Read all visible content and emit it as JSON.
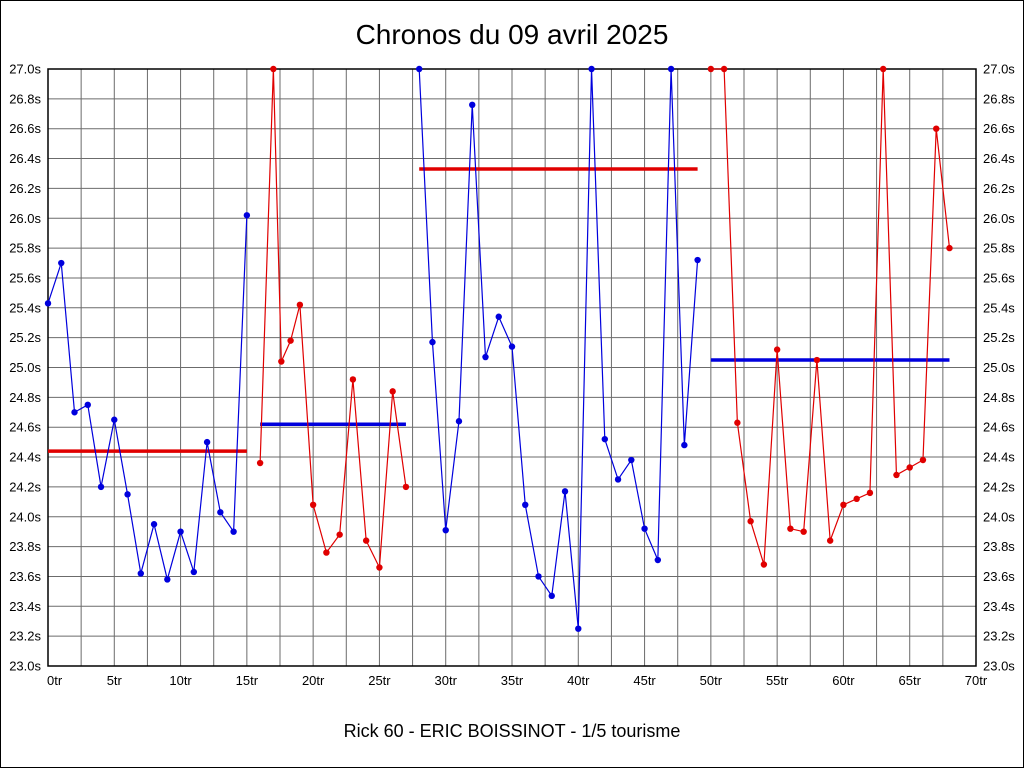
{
  "chart_data": {
    "type": "line",
    "title": "Chronos du 09 avril 2025",
    "subtitle": "Rick 60 - ERIC BOISSINOT - 1/5 tourisme",
    "x_axis": {
      "min": 0,
      "max": 70,
      "label_step": 5,
      "grid_step": 2.5,
      "unit": "tr"
    },
    "y_axis": {
      "min": 23.0,
      "max": 27.0,
      "step": 0.2,
      "unit": "s"
    },
    "grid": true,
    "legend": "none",
    "colors": {
      "blue": "#0000dd",
      "red": "#e00000",
      "grid": "#6b6b6b",
      "border": "#000000"
    },
    "series": [
      {
        "name": "stint-1-blue",
        "color": "blue",
        "points": [
          [
            0,
            25.43
          ],
          [
            1,
            25.7
          ],
          [
            2,
            24.7
          ],
          [
            3,
            24.75
          ],
          [
            4,
            24.2
          ],
          [
            5,
            24.65
          ],
          [
            6,
            24.15
          ],
          [
            7,
            23.62
          ],
          [
            8,
            23.95
          ],
          [
            9,
            23.58
          ],
          [
            10,
            23.9
          ],
          [
            11,
            23.63
          ],
          [
            12,
            24.5
          ],
          [
            13,
            24.03
          ],
          [
            14,
            23.9
          ],
          [
            15,
            26.02
          ]
        ]
      },
      {
        "name": "stint-2-red",
        "color": "red",
        "points": [
          [
            16,
            24.36
          ],
          [
            17,
            27.0
          ],
          [
            17.6,
            25.04
          ],
          [
            18.3,
            25.18
          ],
          [
            19,
            25.42
          ],
          [
            20,
            24.08
          ],
          [
            21,
            23.76
          ],
          [
            22,
            23.88
          ],
          [
            23,
            24.92
          ],
          [
            24,
            23.84
          ],
          [
            25,
            23.66
          ],
          [
            26,
            24.84
          ],
          [
            27,
            24.2
          ]
        ]
      },
      {
        "name": "stint-3-blue",
        "color": "blue",
        "points": [
          [
            28,
            27.0
          ],
          [
            29,
            25.17
          ],
          [
            30,
            23.91
          ],
          [
            31,
            24.64
          ],
          [
            32,
            26.76
          ],
          [
            33,
            25.07
          ],
          [
            34,
            25.34
          ],
          [
            35,
            25.14
          ],
          [
            36,
            24.08
          ],
          [
            37,
            23.6
          ],
          [
            38,
            23.47
          ],
          [
            39,
            24.17
          ],
          [
            40,
            23.25
          ],
          [
            41,
            27.0
          ],
          [
            42,
            24.52
          ],
          [
            43,
            24.25
          ],
          [
            44,
            24.38
          ],
          [
            45,
            23.92
          ],
          [
            46,
            23.71
          ],
          [
            47,
            27.0
          ],
          [
            48,
            24.48
          ],
          [
            49,
            25.72
          ]
        ]
      },
      {
        "name": "stint-4-red",
        "color": "red",
        "points": [
          [
            50,
            27.0
          ],
          [
            51,
            27.0
          ],
          [
            52,
            24.63
          ],
          [
            53,
            23.97
          ],
          [
            54,
            23.68
          ],
          [
            55,
            25.12
          ],
          [
            56,
            23.92
          ],
          [
            57,
            23.9
          ],
          [
            58,
            25.05
          ],
          [
            59,
            23.84
          ],
          [
            60,
            24.08
          ],
          [
            61,
            24.12
          ],
          [
            62,
            24.16
          ],
          [
            63,
            27.0
          ],
          [
            64,
            24.28
          ],
          [
            65,
            24.33
          ],
          [
            66,
            24.38
          ],
          [
            67,
            26.6
          ],
          [
            68,
            25.8
          ]
        ]
      }
    ],
    "average_lines": [
      {
        "name": "avg-line-stint-1",
        "color": "red",
        "value": 24.44,
        "x_start": 0,
        "x_end": 15
      },
      {
        "name": "avg-line-stint-2",
        "color": "blue",
        "value": 24.62,
        "x_start": 16,
        "x_end": 27
      },
      {
        "name": "avg-line-stint-3",
        "color": "red",
        "value": 26.33,
        "x_start": 28,
        "x_end": 49
      },
      {
        "name": "avg-line-stint-4",
        "color": "blue",
        "value": 25.05,
        "x_start": 50,
        "x_end": 68
      }
    ]
  }
}
